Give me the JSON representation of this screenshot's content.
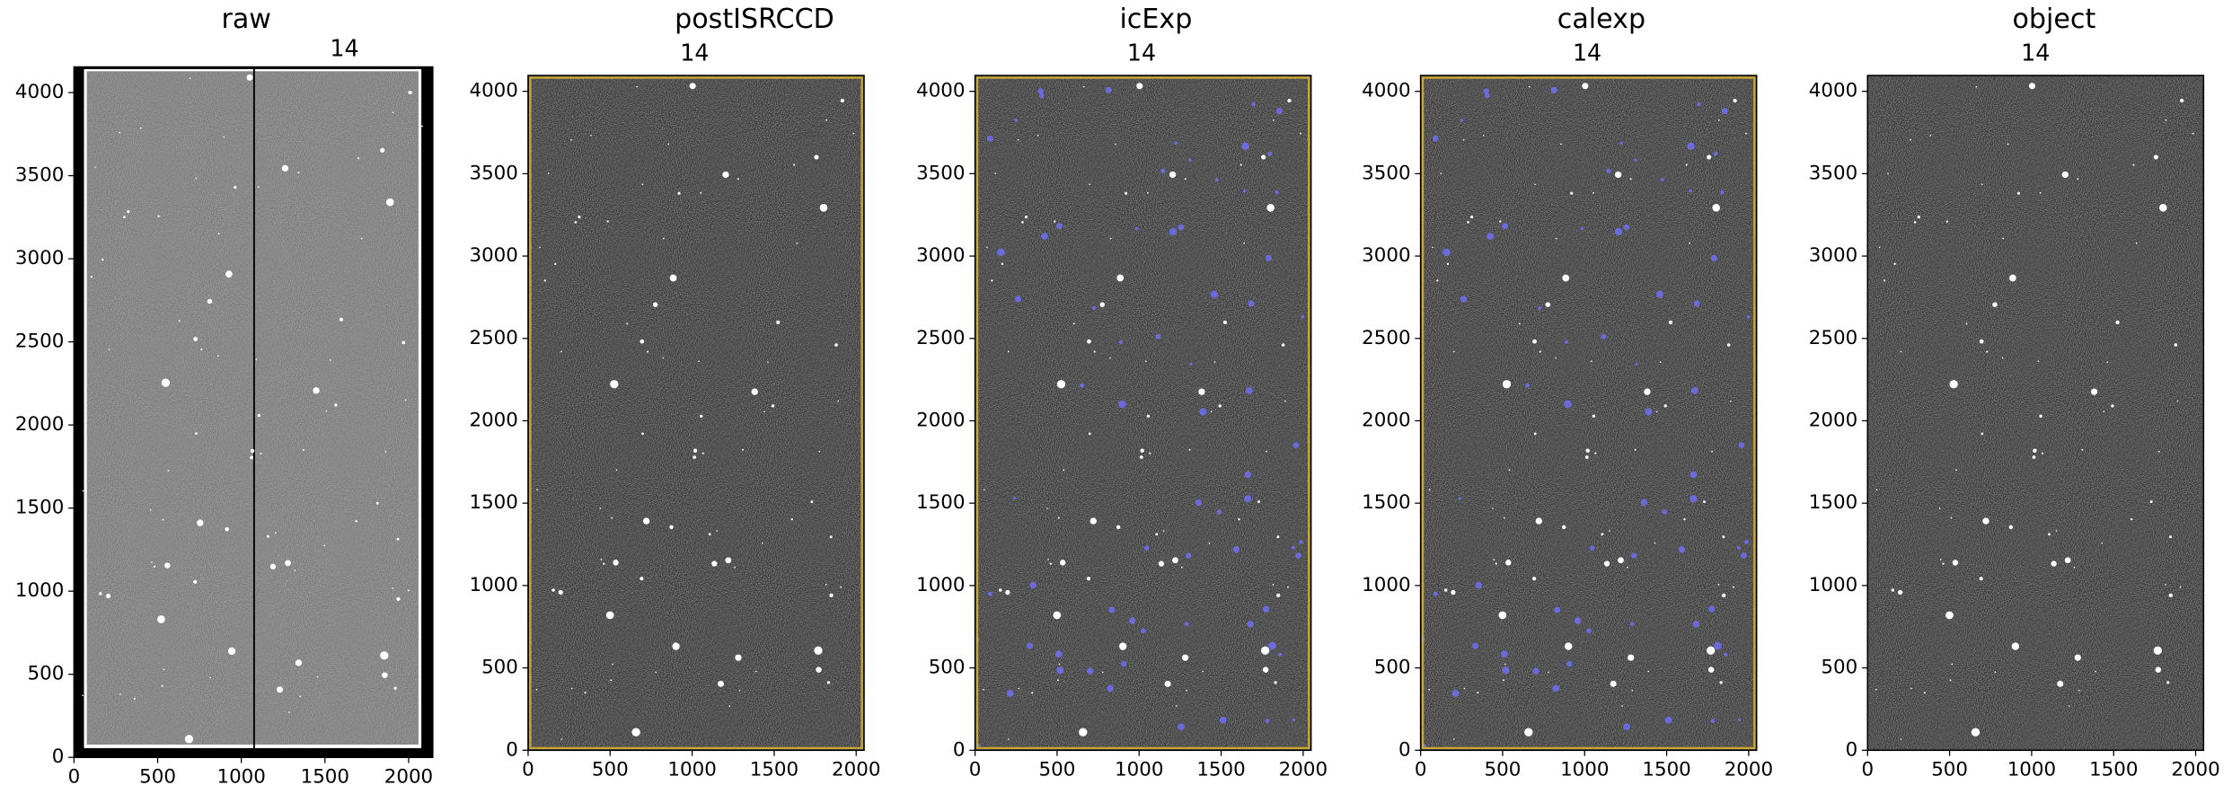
{
  "chart_data": [
    {
      "type": "image",
      "title": "raw",
      "subtitle": "14",
      "xlim": [
        0,
        2144
      ],
      "ylim": [
        0,
        4154
      ],
      "xticks": [
        0,
        500,
        1000,
        1500,
        2000
      ],
      "yticks": [
        0,
        500,
        1000,
        1500,
        2000,
        2500,
        3000,
        3500,
        4000
      ]
    },
    {
      "type": "image",
      "title": "postISRCCD",
      "subtitle": "14",
      "xlim": [
        0,
        2048
      ],
      "ylim": [
        0,
        4096
      ],
      "xticks": [
        0,
        500,
        1000,
        1500,
        2000
      ],
      "yticks": [
        0,
        500,
        1000,
        1500,
        2000,
        2500,
        3000,
        3500,
        4000
      ],
      "border_color": "#c8a830"
    },
    {
      "type": "image",
      "title": "icExp",
      "subtitle": "14",
      "xlim": [
        0,
        2048
      ],
      "ylim": [
        0,
        4096
      ],
      "xticks": [
        0,
        500,
        1000,
        1500,
        2000
      ],
      "yticks": [
        0,
        500,
        1000,
        1500,
        2000,
        2500,
        3000,
        3500,
        4000
      ],
      "border_color": "#c8a830",
      "mask_color": "#7070ff"
    },
    {
      "type": "image",
      "title": "calexp",
      "subtitle": "14",
      "xlim": [
        0,
        2048
      ],
      "ylim": [
        0,
        4096
      ],
      "xticks": [
        0,
        500,
        1000,
        1500,
        2000
      ],
      "yticks": [
        0,
        500,
        1000,
        1500,
        2000,
        2500,
        3000,
        3500,
        4000
      ],
      "border_color": "#c8a830",
      "mask_color": "#7070ff"
    },
    {
      "type": "image",
      "title": "object",
      "subtitle": "14",
      "xlim": [
        0,
        2048
      ],
      "ylim": [
        0,
        4096
      ],
      "xticks": [
        0,
        500,
        1000,
        1500,
        2000
      ],
      "yticks": [
        0,
        500,
        1000,
        1500,
        2000,
        2500,
        3000,
        3500,
        4000
      ]
    }
  ]
}
